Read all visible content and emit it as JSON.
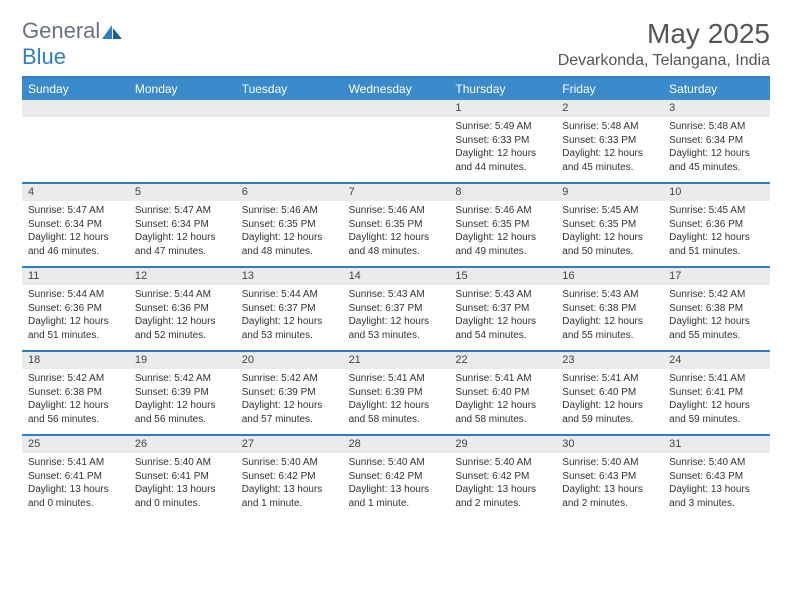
{
  "logo": {
    "text1": "General",
    "text2": "Blue"
  },
  "title": "May 2025",
  "location": "Devarkonda, Telangana, India",
  "weekdays": [
    "Sunday",
    "Monday",
    "Tuesday",
    "Wednesday",
    "Thursday",
    "Friday",
    "Saturday"
  ],
  "colors": {
    "header_bg": "#3b8bcc",
    "border": "#2f7fc4",
    "strip": "#ebebeb"
  },
  "weeks": [
    {
      "days": [
        null,
        null,
        null,
        null,
        {
          "n": "1",
          "sr": "5:49 AM",
          "ss": "6:33 PM",
          "dl": "12 hours and 44 minutes."
        },
        {
          "n": "2",
          "sr": "5:48 AM",
          "ss": "6:33 PM",
          "dl": "12 hours and 45 minutes."
        },
        {
          "n": "3",
          "sr": "5:48 AM",
          "ss": "6:34 PM",
          "dl": "12 hours and 45 minutes."
        }
      ]
    },
    {
      "days": [
        {
          "n": "4",
          "sr": "5:47 AM",
          "ss": "6:34 PM",
          "dl": "12 hours and 46 minutes."
        },
        {
          "n": "5",
          "sr": "5:47 AM",
          "ss": "6:34 PM",
          "dl": "12 hours and 47 minutes."
        },
        {
          "n": "6",
          "sr": "5:46 AM",
          "ss": "6:35 PM",
          "dl": "12 hours and 48 minutes."
        },
        {
          "n": "7",
          "sr": "5:46 AM",
          "ss": "6:35 PM",
          "dl": "12 hours and 48 minutes."
        },
        {
          "n": "8",
          "sr": "5:46 AM",
          "ss": "6:35 PM",
          "dl": "12 hours and 49 minutes."
        },
        {
          "n": "9",
          "sr": "5:45 AM",
          "ss": "6:35 PM",
          "dl": "12 hours and 50 minutes."
        },
        {
          "n": "10",
          "sr": "5:45 AM",
          "ss": "6:36 PM",
          "dl": "12 hours and 51 minutes."
        }
      ]
    },
    {
      "days": [
        {
          "n": "11",
          "sr": "5:44 AM",
          "ss": "6:36 PM",
          "dl": "12 hours and 51 minutes."
        },
        {
          "n": "12",
          "sr": "5:44 AM",
          "ss": "6:36 PM",
          "dl": "12 hours and 52 minutes."
        },
        {
          "n": "13",
          "sr": "5:44 AM",
          "ss": "6:37 PM",
          "dl": "12 hours and 53 minutes."
        },
        {
          "n": "14",
          "sr": "5:43 AM",
          "ss": "6:37 PM",
          "dl": "12 hours and 53 minutes."
        },
        {
          "n": "15",
          "sr": "5:43 AM",
          "ss": "6:37 PM",
          "dl": "12 hours and 54 minutes."
        },
        {
          "n": "16",
          "sr": "5:43 AM",
          "ss": "6:38 PM",
          "dl": "12 hours and 55 minutes."
        },
        {
          "n": "17",
          "sr": "5:42 AM",
          "ss": "6:38 PM",
          "dl": "12 hours and 55 minutes."
        }
      ]
    },
    {
      "days": [
        {
          "n": "18",
          "sr": "5:42 AM",
          "ss": "6:38 PM",
          "dl": "12 hours and 56 minutes."
        },
        {
          "n": "19",
          "sr": "5:42 AM",
          "ss": "6:39 PM",
          "dl": "12 hours and 56 minutes."
        },
        {
          "n": "20",
          "sr": "5:42 AM",
          "ss": "6:39 PM",
          "dl": "12 hours and 57 minutes."
        },
        {
          "n": "21",
          "sr": "5:41 AM",
          "ss": "6:39 PM",
          "dl": "12 hours and 58 minutes."
        },
        {
          "n": "22",
          "sr": "5:41 AM",
          "ss": "6:40 PM",
          "dl": "12 hours and 58 minutes."
        },
        {
          "n": "23",
          "sr": "5:41 AM",
          "ss": "6:40 PM",
          "dl": "12 hours and 59 minutes."
        },
        {
          "n": "24",
          "sr": "5:41 AM",
          "ss": "6:41 PM",
          "dl": "12 hours and 59 minutes."
        }
      ]
    },
    {
      "days": [
        {
          "n": "25",
          "sr": "5:41 AM",
          "ss": "6:41 PM",
          "dl": "13 hours and 0 minutes."
        },
        {
          "n": "26",
          "sr": "5:40 AM",
          "ss": "6:41 PM",
          "dl": "13 hours and 0 minutes."
        },
        {
          "n": "27",
          "sr": "5:40 AM",
          "ss": "6:42 PM",
          "dl": "13 hours and 1 minute."
        },
        {
          "n": "28",
          "sr": "5:40 AM",
          "ss": "6:42 PM",
          "dl": "13 hours and 1 minute."
        },
        {
          "n": "29",
          "sr": "5:40 AM",
          "ss": "6:42 PM",
          "dl": "13 hours and 2 minutes."
        },
        {
          "n": "30",
          "sr": "5:40 AM",
          "ss": "6:43 PM",
          "dl": "13 hours and 2 minutes."
        },
        {
          "n": "31",
          "sr": "5:40 AM",
          "ss": "6:43 PM",
          "dl": "13 hours and 3 minutes."
        }
      ]
    }
  ],
  "labels": {
    "sunrise": "Sunrise: ",
    "sunset": "Sunset: ",
    "daylight": "Daylight: "
  }
}
